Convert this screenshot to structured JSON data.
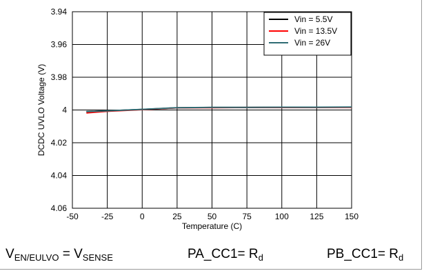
{
  "chart_data": {
    "type": "line",
    "title": "",
    "xlabel": "Temperature (C)",
    "ylabel": "DCDC UVLO Voltage (V)",
    "xlim": [
      -50,
      150
    ],
    "ylim": [
      3.94,
      4.06
    ],
    "y_inverted": true,
    "grid": true,
    "legend_position": "top-right",
    "x_ticks": [
      "-50",
      "-25",
      "0",
      "25",
      "50",
      "75",
      "100",
      "125",
      "150"
    ],
    "y_ticks": [
      "3.94",
      "3.96",
      "3.98",
      "4",
      "4.02",
      "4.04",
      "4.06"
    ],
    "series": [
      {
        "name": "Vin = 5.5V",
        "color": "#000000",
        "x": [
          -40,
          -25,
          0,
          25,
          50,
          75,
          100,
          125,
          150
        ],
        "y": [
          4.001,
          4.0005,
          3.9997,
          3.9987,
          3.9985,
          3.9985,
          3.9984,
          3.9984,
          3.9983
        ]
      },
      {
        "name": "Vin = 13.5V",
        "color": "#ff0000",
        "x": [
          -40,
          -25,
          0,
          25,
          50,
          75,
          100,
          125,
          150
        ],
        "y": [
          4.0018,
          4.0008,
          3.9998,
          3.9987,
          3.9986,
          3.9985,
          3.9985,
          3.9984,
          3.9984
        ]
      },
      {
        "name": "Vin = 26V",
        "color": "#2e6b73",
        "x": [
          -40,
          -25,
          0,
          25,
          50,
          75,
          100,
          125,
          150
        ],
        "y": [
          4.001,
          4.0005,
          3.9996,
          3.9986,
          3.9984,
          3.9984,
          3.9983,
          3.9983,
          3.9982
        ]
      }
    ]
  },
  "conditions": {
    "c1_main": "V",
    "c1_sub": "EN/EULVO",
    "c1_mid": " = V",
    "c1_sub2": "SENSE",
    "c2_main": "PA_CC1= R",
    "c2_sub": "d",
    "c3_main": "PB_CC1= R",
    "c3_sub": "d"
  }
}
